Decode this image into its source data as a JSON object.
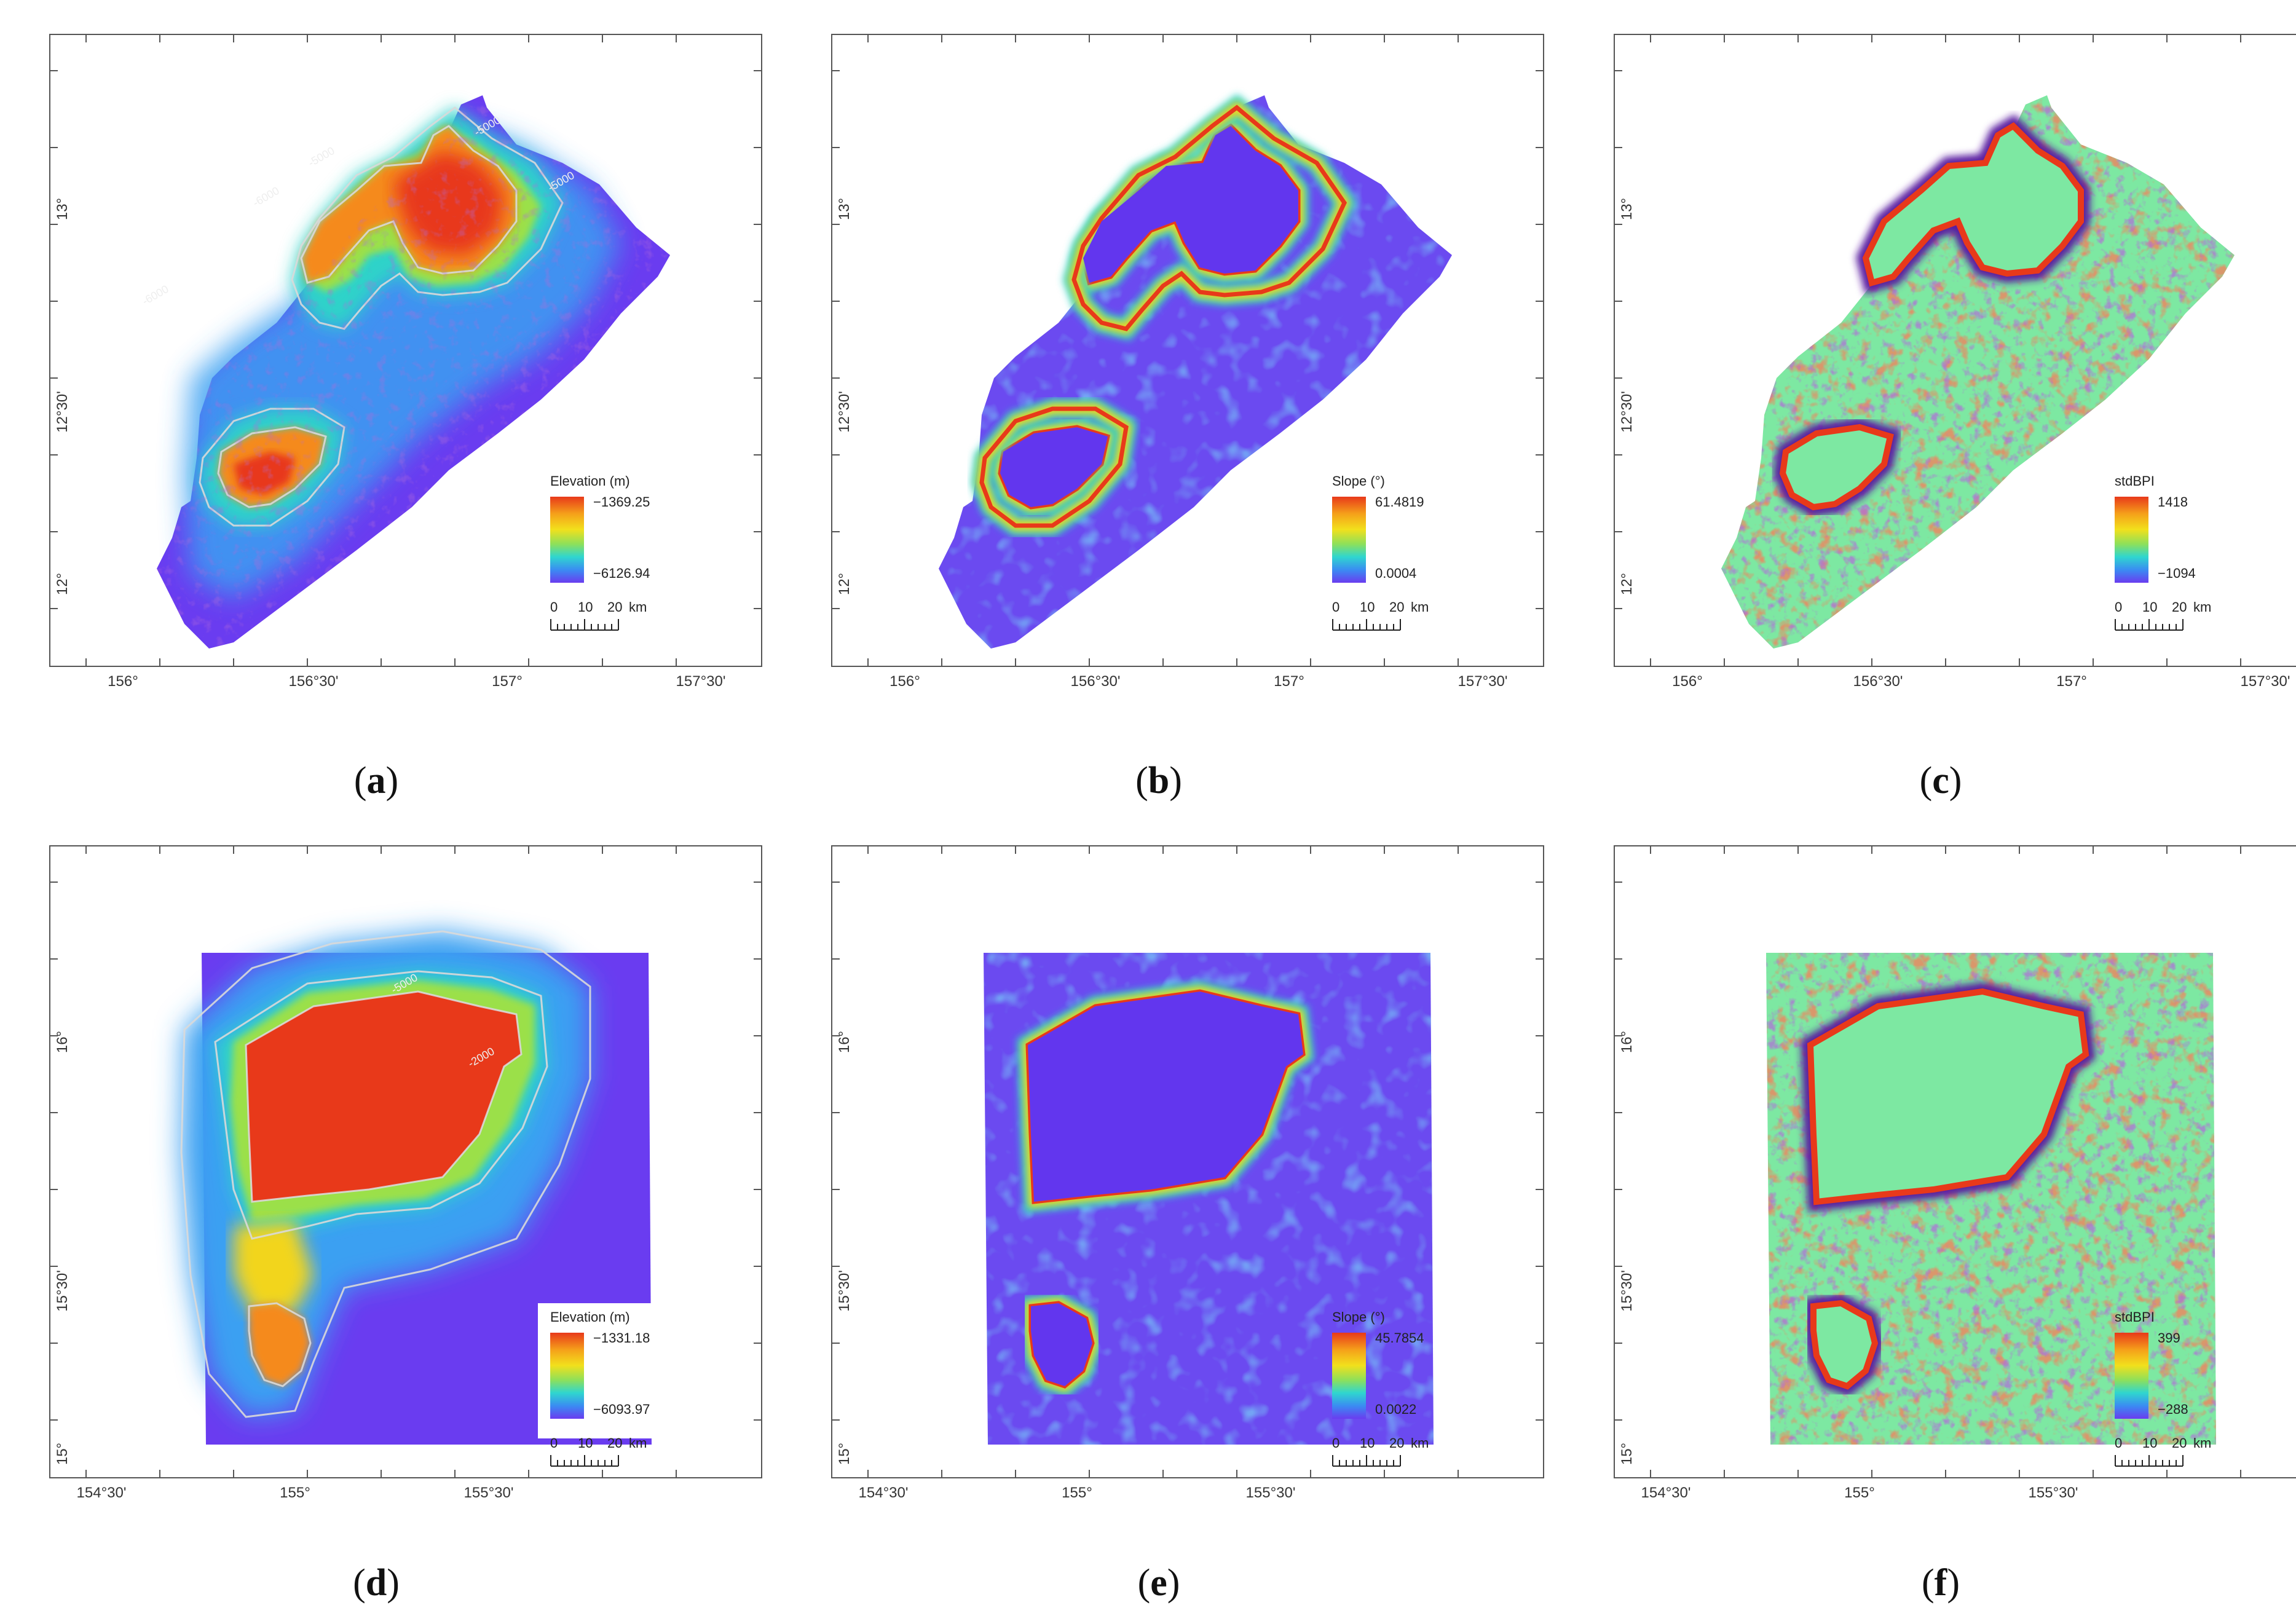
{
  "colors": {
    "elev_ramp": [
      "#e8391a",
      "#f58a1a",
      "#f2d51c",
      "#9be04a",
      "#2fd3c9",
      "#3aa0f2",
      "#6a3cf0"
    ],
    "green_bg": "#7de8a2",
    "purple_bg": "#6b4af0",
    "contour": "#d9d9d9"
  },
  "panels": [
    {
      "id": "a",
      "caption_letter": "a",
      "kind": "elevation",
      "shape": "north",
      "yticks": [
        "13°",
        "12°30'",
        "12°"
      ],
      "xticks": [
        "156°",
        "156°30'",
        "157°",
        "157°30'"
      ],
      "legend_title": "Elevation (m)",
      "legend_max": "−1369.25",
      "legend_min": "−6126.94",
      "scale_labels": [
        "0",
        "10",
        "20",
        "km"
      ],
      "contour_labels": [
        "-5000",
        "-6000",
        "-5000",
        "-5000",
        "-6000"
      ]
    },
    {
      "id": "b",
      "caption_letter": "b",
      "kind": "slope",
      "shape": "north",
      "yticks": [
        "13°",
        "12°30'",
        "12°"
      ],
      "xticks": [
        "156°",
        "156°30'",
        "157°",
        "157°30'"
      ],
      "legend_title": "Slope (°)",
      "legend_max": "61.4819",
      "legend_min": "0.0004",
      "scale_labels": [
        "0",
        "10",
        "20",
        "km"
      ]
    },
    {
      "id": "c",
      "caption_letter": "c",
      "kind": "bpi",
      "shape": "north",
      "yticks": [
        "13°",
        "12°30'",
        "12°"
      ],
      "xticks": [
        "156°",
        "156°30'",
        "157°",
        "157°30'"
      ],
      "legend_title": "stdBPI",
      "legend_max": "1418",
      "legend_min": "−1094",
      "scale_labels": [
        "0",
        "10",
        "20",
        "km"
      ]
    },
    {
      "id": "d",
      "caption_letter": "d",
      "kind": "elevation",
      "shape": "south",
      "yticks": [
        "16°",
        "15°30'",
        "15°"
      ],
      "xticks": [
        "154°30'",
        "155°",
        "155°30'"
      ],
      "legend_title": "Elevation (m)",
      "legend_max": "−1331.18",
      "legend_min": "−6093.97",
      "scale_labels": [
        "0",
        "10",
        "20",
        "km"
      ],
      "contour_labels": [
        "-5000",
        "-2000"
      ]
    },
    {
      "id": "e",
      "caption_letter": "e",
      "kind": "slope",
      "shape": "south",
      "yticks": [
        "16°",
        "15°30'",
        "15°"
      ],
      "xticks": [
        "154°30'",
        "155°",
        "155°30'"
      ],
      "legend_title": "Slope (°)",
      "legend_max": "45.7854",
      "legend_min": "0.0022",
      "scale_labels": [
        "0",
        "10",
        "20",
        "km"
      ]
    },
    {
      "id": "f",
      "caption_letter": "f",
      "kind": "bpi",
      "shape": "south",
      "yticks": [
        "16°",
        "15°30'",
        "15°"
      ],
      "xticks": [
        "154°30'",
        "155°",
        "155°30'"
      ],
      "legend_title": "stdBPI",
      "legend_max": "399",
      "legend_min": "−288",
      "scale_labels": [
        "0",
        "10",
        "20",
        "km"
      ]
    }
  ]
}
